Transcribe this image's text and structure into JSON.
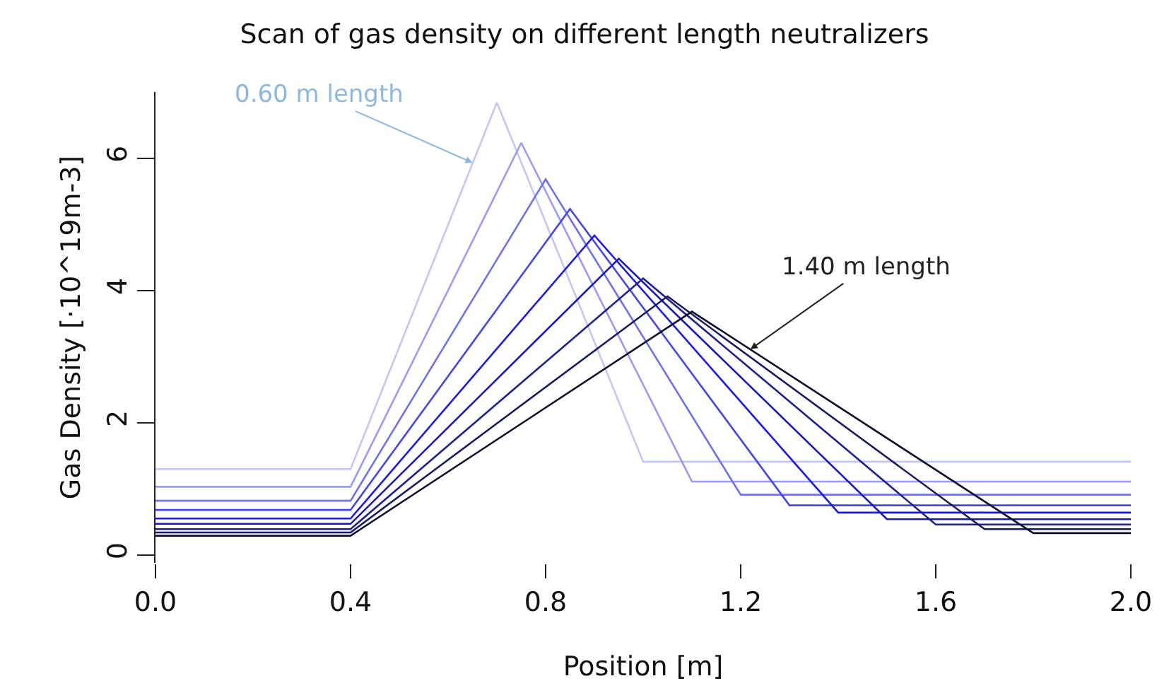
{
  "chart_data": {
    "type": "line",
    "title": "Scan of gas density on different length neutralizers",
    "xlabel": "Position [m]",
    "ylabel": "Gas Density [·10^19m-3]",
    "series": [
      {
        "color": "#c5c5fa",
        "x": [
          0,
          0.4,
          0.7,
          1.0,
          2.0
        ],
        "values": [
          1.3,
          1.3,
          6.84,
          1.41,
          1.41
        ]
      },
      {
        "color": "#9b9bf7",
        "x": [
          0,
          0.4,
          0.75,
          1.1,
          2.0
        ],
        "values": [
          1.03,
          1.03,
          6.23,
          1.11,
          1.11
        ]
      },
      {
        "color": "#7070f0",
        "x": [
          0,
          0.4,
          0.8,
          1.2,
          2.0
        ],
        "values": [
          0.82,
          0.82,
          5.68,
          0.91,
          0.91
        ]
      },
      {
        "color": "#4646ee",
        "x": [
          0,
          0.4,
          0.85,
          1.3,
          2.0
        ],
        "values": [
          0.68,
          0.68,
          5.23,
          0.75,
          0.75
        ]
      },
      {
        "color": "#1a1aee",
        "x": [
          0,
          0.4,
          0.9,
          1.4,
          2.0
        ],
        "values": [
          0.55,
          0.55,
          4.83,
          0.64,
          0.64
        ]
      },
      {
        "color": "#1818c0",
        "x": [
          0,
          0.4,
          0.95,
          1.5,
          2.0
        ],
        "values": [
          0.47,
          0.47,
          4.48,
          0.54,
          0.54
        ]
      },
      {
        "color": "#202090",
        "x": [
          0,
          0.4,
          1.0,
          1.6,
          2.0
        ],
        "values": [
          0.39,
          0.39,
          4.18,
          0.46,
          0.46
        ]
      },
      {
        "color": "#1a1a60",
        "x": [
          0,
          0.4,
          1.05,
          1.7,
          2.0
        ],
        "values": [
          0.34,
          0.34,
          3.91,
          0.39,
          0.39
        ]
      },
      {
        "color": "#101030",
        "x": [
          0,
          0.4,
          1.1,
          1.8,
          2.0
        ],
        "values": [
          0.29,
          0.29,
          3.68,
          0.33,
          0.33
        ]
      }
    ],
    "annotations": [
      {
        "text": "0.60 m length",
        "x": 0.65,
        "y": 5.93
      },
      {
        "text": "1.40 m length",
        "x": 1.22,
        "y": 3.11
      }
    ],
    "xlim": [
      0,
      2
    ],
    "xticks": [
      {
        "value": 0,
        "label": "0.0"
      },
      {
        "value": 0.4,
        "label": "0.4"
      },
      {
        "value": 0.8,
        "label": "0.8"
      },
      {
        "value": 1.2,
        "label": "1.2"
      },
      {
        "value": 1.6,
        "label": "1.6"
      },
      {
        "value": 2,
        "label": "2.0"
      }
    ],
    "ylim": [
      -0.12,
      7
    ],
    "yticks": [
      0,
      2,
      4,
      6
    ],
    "marker": "none",
    "line_style": "solid"
  }
}
